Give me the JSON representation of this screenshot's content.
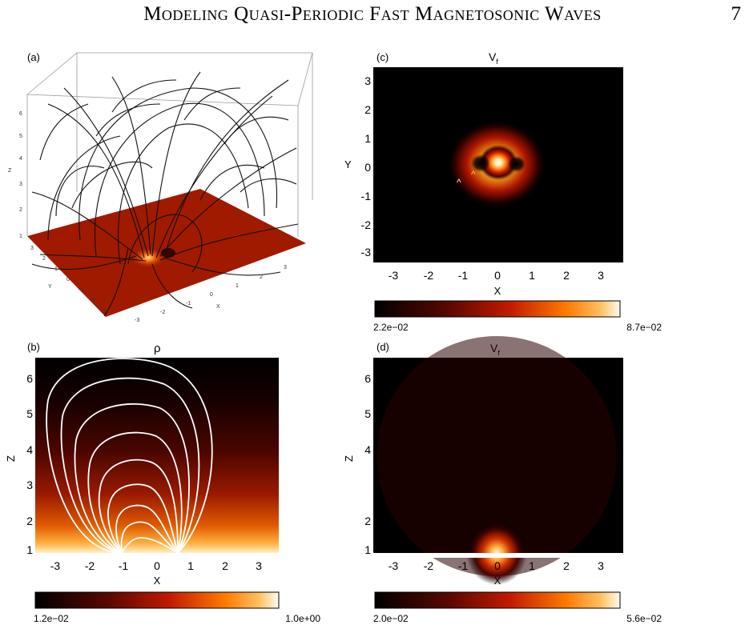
{
  "header": {
    "title": "Modeling Quasi-Periodic Fast Magnetosonic Waves",
    "page_number": "7"
  },
  "panels": {
    "a": {
      "label": "(a)",
      "axis_x": "X",
      "axis_y": "Y",
      "axis_z": "Z",
      "z_ticks": [
        "1",
        "2",
        "3",
        "4",
        "5",
        "6"
      ],
      "y_ticks": [
        "-3",
        "-2",
        "-1",
        "0",
        "1",
        "2",
        "3"
      ],
      "x_ticks": [
        "-3",
        "-2",
        "-1",
        "0",
        "1",
        "2",
        "3"
      ]
    },
    "b": {
      "label": "(b)",
      "title": "ρ",
      "xlabel": "X",
      "ylabel": "Z",
      "x_ticks": [
        "-3",
        "-2",
        "-1",
        "0",
        "1",
        "2",
        "3"
      ],
      "y_ticks": [
        "1",
        "2",
        "3",
        "4",
        "5",
        "6"
      ],
      "colorbar": {
        "min": "1.2e−02",
        "max": "1.0e+00"
      }
    },
    "c": {
      "label": "(c)",
      "title": "V",
      "title_sub": "f",
      "xlabel": "X",
      "ylabel": "Y",
      "x_ticks": [
        "-3",
        "-2",
        "-1",
        "0",
        "1",
        "2",
        "3"
      ],
      "y_ticks": [
        "3",
        "2",
        "1",
        "0",
        "-1",
        "-2",
        "-3"
      ],
      "markers": [
        "^",
        "^"
      ],
      "colorbar": {
        "min": "2.2e−02",
        "max": "8.7e−02"
      }
    },
    "d": {
      "label": "(d)",
      "title": "V",
      "title_sub": "f",
      "xlabel": "X",
      "ylabel": "Z",
      "x_ticks": [
        "-3",
        "-2",
        "-1",
        "0",
        "1",
        "2",
        "3"
      ],
      "y_ticks": [
        "1",
        "2",
        "4",
        "5",
        "6"
      ],
      "colorbar": {
        "min": "2.0e−02",
        "max": "5.6e−02"
      }
    }
  },
  "colors": {
    "colormap_dark": "#000000",
    "colormap_mid": "#c11a00",
    "colormap_bright": "#ff8a00",
    "colormap_max": "#fffbe8"
  }
}
